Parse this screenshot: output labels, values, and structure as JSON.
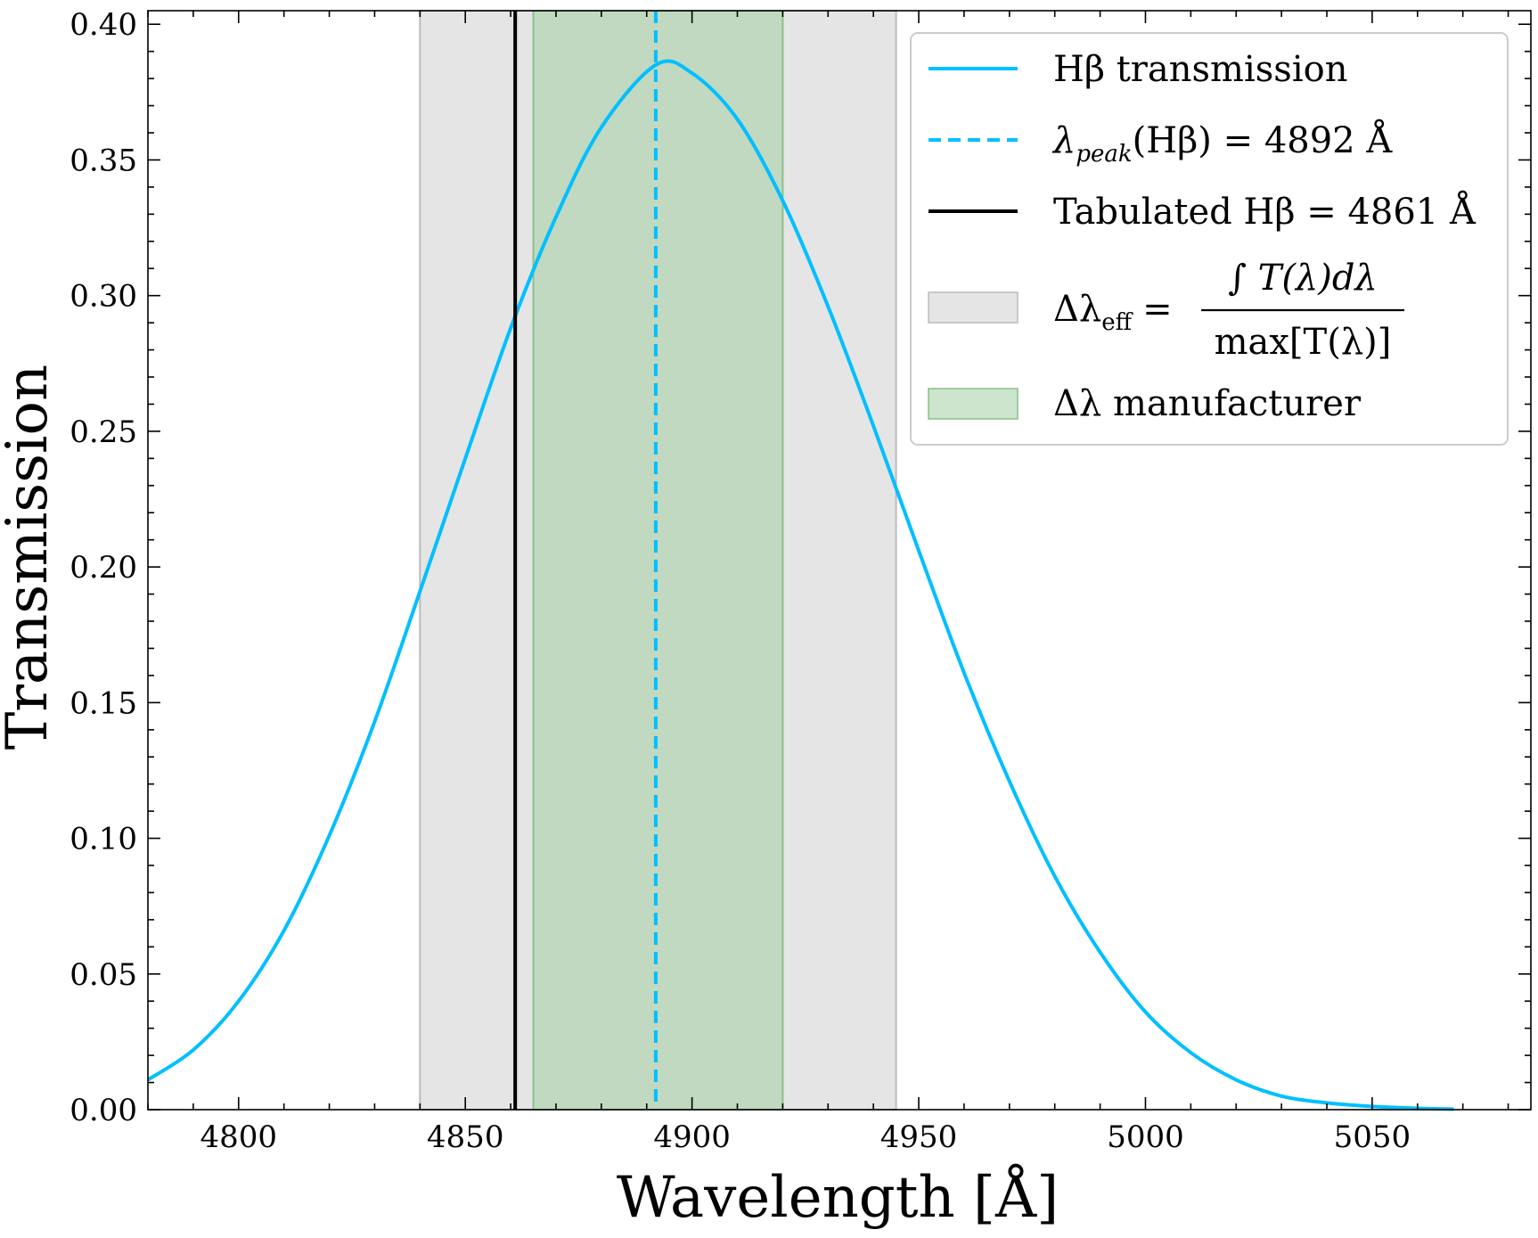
{
  "chart_data": {
    "type": "line",
    "xlabel": "Wavelength [Å]",
    "ylabel": "Transmission",
    "xlim": [
      4780,
      5085
    ],
    "ylim": [
      0,
      0.405
    ],
    "xticks": [
      4800,
      4850,
      4900,
      4950,
      5000,
      5050
    ],
    "xtick_labels": [
      "4800",
      "4850",
      "4900",
      "4950",
      "5000",
      "5050"
    ],
    "yticks": [
      0,
      0.05,
      0.1,
      0.15,
      0.2,
      0.25,
      0.3,
      0.35,
      0.4
    ],
    "ytick_labels": [
      "0.00",
      "0.05",
      "0.10",
      "0.15",
      "0.20",
      "0.25",
      "0.30",
      "0.35",
      "0.40"
    ],
    "grid": false,
    "legend_position": "top-right",
    "series": [
      {
        "name": "Hβ transmission",
        "color": "#00bfff",
        "style": "solid",
        "x": [
          4780,
          4790,
          4800,
          4810,
          4820,
          4830,
          4840,
          4850,
          4860,
          4870,
          4880,
          4892,
          4900,
          4910,
          4920,
          4930,
          4940,
          4950,
          4960,
          4970,
          4980,
          4990,
          5000,
          5010,
          5020,
          5030,
          5040,
          5050,
          5060,
          5068
        ],
        "y": [
          0.011,
          0.022,
          0.04,
          0.066,
          0.101,
          0.143,
          0.191,
          0.24,
          0.288,
          0.329,
          0.362,
          0.385,
          0.382,
          0.365,
          0.335,
          0.296,
          0.252,
          0.206,
          0.161,
          0.121,
          0.086,
          0.058,
          0.036,
          0.021,
          0.011,
          0.005,
          0.0025,
          0.0012,
          0.0005,
          0.0002
        ]
      }
    ],
    "vlines": [
      {
        "name": "λpeak(Hβ) = 4892 Å",
        "x": 4892,
        "color": "#00bfff",
        "style": "dashed"
      },
      {
        "name": "Tabulated Hβ = 4861 Å",
        "x": 4861,
        "color": "#000000",
        "style": "solid"
      }
    ],
    "bands": [
      {
        "name": "Δλeff",
        "x0": 4840,
        "x1": 4945,
        "color": "#cccccc",
        "opacity": 0.5
      },
      {
        "name": "Δλ manufacturer",
        "x0": 4865,
        "x1": 4920,
        "color": "#a3cfa3",
        "opacity": 0.55
      }
    ],
    "legend": {
      "entries": [
        {
          "id": "transmission",
          "text": "Hβ transmission"
        },
        {
          "id": "peak",
          "lambda": "λ",
          "sub": "peak",
          "rest": "(Hβ) = 4892 Å"
        },
        {
          "id": "tabulated",
          "text": "Tabulated Hβ = 4861 Å"
        },
        {
          "id": "eff",
          "lhs": "Δλ",
          "sub": "eff",
          "eq": "=",
          "numerator": "∫ T(λ)dλ",
          "denominator": "max[T(λ)]"
        },
        {
          "id": "manufacturer",
          "text": "Δλ manufacturer"
        }
      ]
    }
  }
}
